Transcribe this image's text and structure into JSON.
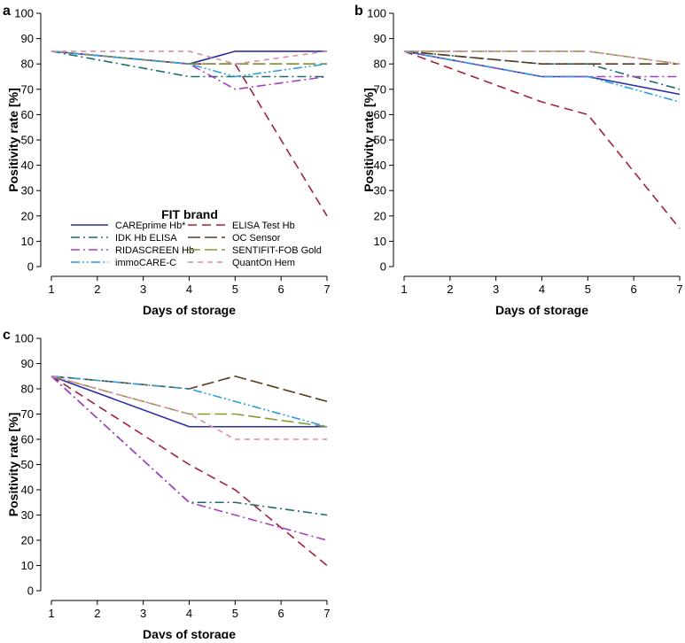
{
  "chart_data": [
    {
      "panel": "a",
      "type": "line",
      "xlabel": "Days of storage",
      "ylabel": "Positivity rate [%]",
      "x": [
        1,
        4,
        5,
        7
      ],
      "xlim": [
        1,
        7
      ],
      "ylim": [
        0,
        100
      ],
      "xticks": [
        1,
        2,
        3,
        4,
        5,
        6,
        7
      ],
      "yticks": [
        0,
        10,
        20,
        30,
        40,
        50,
        60,
        70,
        80,
        90,
        100
      ],
      "legend_placement": "bottom-left",
      "series": [
        {
          "name": "CAREprime Hb*",
          "values": [
            85,
            80,
            85,
            85
          ]
        },
        {
          "name": "ELISA Test Hb",
          "values": [
            85,
            80,
            80,
            20
          ]
        },
        {
          "name": "IDK Hb ELISA",
          "values": [
            85,
            75,
            75,
            75
          ]
        },
        {
          "name": "OC Sensor",
          "values": [
            85,
            80,
            80,
            80
          ]
        },
        {
          "name": "RIDASCREEN Hb",
          "values": [
            85,
            80,
            70,
            75
          ]
        },
        {
          "name": "SENTIFIT-FOB Gold",
          "values": [
            85,
            80,
            80,
            80
          ]
        },
        {
          "name": "immoCARE-C",
          "values": [
            85,
            80,
            75,
            80
          ]
        },
        {
          "name": "QuantOn Hem",
          "values": [
            85,
            85,
            80,
            85
          ]
        }
      ]
    },
    {
      "panel": "b",
      "type": "line",
      "xlabel": "Days of storage",
      "ylabel": "Positivity rate [%]",
      "x": [
        1,
        4,
        5,
        7
      ],
      "xlim": [
        1,
        7
      ],
      "ylim": [
        0,
        100
      ],
      "xticks": [
        1,
        2,
        3,
        4,
        5,
        6,
        7
      ],
      "yticks": [
        0,
        10,
        20,
        30,
        40,
        50,
        60,
        70,
        80,
        90,
        100
      ],
      "series": [
        {
          "name": "CAREprime Hb*",
          "values": [
            85,
            75,
            75,
            68
          ]
        },
        {
          "name": "ELISA Test Hb",
          "values": [
            85,
            65,
            60,
            15
          ]
        },
        {
          "name": "IDK Hb ELISA",
          "values": [
            85,
            80,
            80,
            70
          ]
        },
        {
          "name": "OC Sensor",
          "values": [
            85,
            80,
            80,
            80
          ]
        },
        {
          "name": "RIDASCREEN Hb",
          "values": [
            85,
            75,
            75,
            75
          ]
        },
        {
          "name": "SENTIFIT-FOB Gold",
          "values": [
            85,
            85,
            85,
            80
          ]
        },
        {
          "name": "immoCARE-C",
          "values": [
            85,
            75,
            75,
            65
          ]
        },
        {
          "name": "QuantOn Hem",
          "values": [
            85,
            85,
            85,
            80
          ]
        }
      ]
    },
    {
      "panel": "c",
      "type": "line",
      "xlabel": "Days of storage",
      "ylabel": "Positivity rate [%]",
      "x": [
        1,
        4,
        5,
        7
      ],
      "xlim": [
        1,
        7
      ],
      "ylim": [
        0,
        100
      ],
      "xticks": [
        1,
        2,
        3,
        4,
        5,
        6,
        7
      ],
      "yticks": [
        0,
        10,
        20,
        30,
        40,
        50,
        60,
        70,
        80,
        90,
        100
      ],
      "series": [
        {
          "name": "CAREprime Hb*",
          "values": [
            85,
            65,
            65,
            65
          ]
        },
        {
          "name": "ELISA Test Hb",
          "values": [
            85,
            50,
            40,
            10
          ]
        },
        {
          "name": "IDK Hb ELISA",
          "values": [
            85,
            35,
            35,
            30
          ]
        },
        {
          "name": "OC Sensor",
          "values": [
            85,
            80,
            85,
            75
          ]
        },
        {
          "name": "RIDASCREEN Hb",
          "values": [
            85,
            35,
            30,
            20
          ]
        },
        {
          "name": "SENTIFIT-FOB Gold",
          "values": [
            85,
            70,
            70,
            65
          ]
        },
        {
          "name": "immoCARE-C",
          "values": [
            85,
            80,
            75,
            65
          ]
        },
        {
          "name": "QuantOn Hem",
          "values": [
            85,
            70,
            60,
            60
          ]
        }
      ]
    }
  ],
  "legend": {
    "title": "FIT brand",
    "order": [
      0,
      1,
      2,
      3,
      4,
      5,
      6,
      7
    ]
  },
  "styles": [
    {
      "name": "CAREprime Hb*",
      "color": "#2b2ea6",
      "dash": "solid"
    },
    {
      "name": "ELISA Test Hb",
      "color": "#a3213a",
      "dash": "longdash"
    },
    {
      "name": "IDK Hb ELISA",
      "color": "#1c6b6b",
      "dash": "dashdot"
    },
    {
      "name": "OC Sensor",
      "color": "#5a3a1c",
      "dash": "longdash2"
    },
    {
      "name": "RIDASCREEN Hb",
      "color": "#a83ec4",
      "dash": "dashdot"
    },
    {
      "name": "SENTIFIT-FOB Gold",
      "color": "#8a9a30",
      "dash": "longdash2"
    },
    {
      "name": "immoCARE-C",
      "color": "#2aa0dc",
      "dash": "dashdotdot"
    },
    {
      "name": "QuantOn Hem",
      "color": "#d98cb0",
      "dash": "dash"
    }
  ]
}
